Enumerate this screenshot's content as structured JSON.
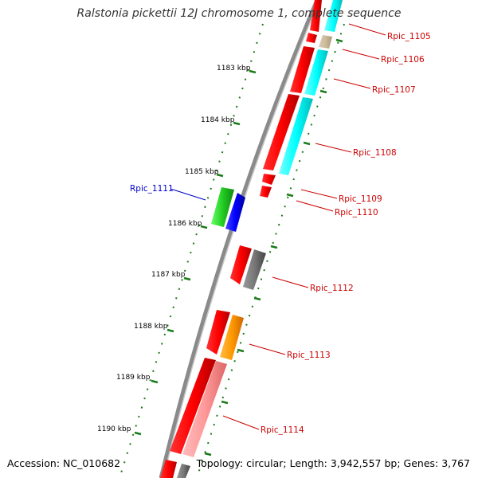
{
  "title": "Ralstonia pickettii 12J chromosome 1, complete sequence",
  "accession": "Accession: NC_010682",
  "topology": "Topology: circular; Length: 3,942,557 bp; Genes: 3,767",
  "colors": {
    "forward_gene": "#ff0000",
    "reverse_gene": "#ff0000",
    "backbone": "#888888",
    "tick": "#1a7a1a",
    "label_red": "#cc0000",
    "label_blue": "#0000cc"
  },
  "kbp_labels": [
    "1183 kbp",
    "1184 kbp",
    "1185 kbp",
    "1186 kbp",
    "1187 kbp",
    "1188 kbp",
    "1189 kbp",
    "1190 kbp"
  ],
  "gene_labels": [
    {
      "name": "Rpic_1105",
      "color": "#cc0000",
      "track_color": "cyan"
    },
    {
      "name": "Rpic_1106",
      "color": "#cc0000",
      "track_color": "tan"
    },
    {
      "name": "Rpic_1107",
      "color": "#cc0000",
      "track_color": "cyan"
    },
    {
      "name": "Rpic_1108",
      "color": "#cc0000",
      "track_color": "cyan"
    },
    {
      "name": "Rpic_1109",
      "color": "#cc0000",
      "track_color": "red"
    },
    {
      "name": "Rpic_1110",
      "color": "#cc0000",
      "track_color": "red"
    },
    {
      "name": "Rpic_1111",
      "color": "#0000cc",
      "track_color": "green"
    },
    {
      "name": "Rpic_1112",
      "color": "#cc0000",
      "track_color": "gray"
    },
    {
      "name": "Rpic_1113",
      "color": "#cc0000",
      "track_color": "orange"
    },
    {
      "name": "Rpic_1114",
      "color": "#cc0000",
      "track_color": "pink"
    }
  ]
}
